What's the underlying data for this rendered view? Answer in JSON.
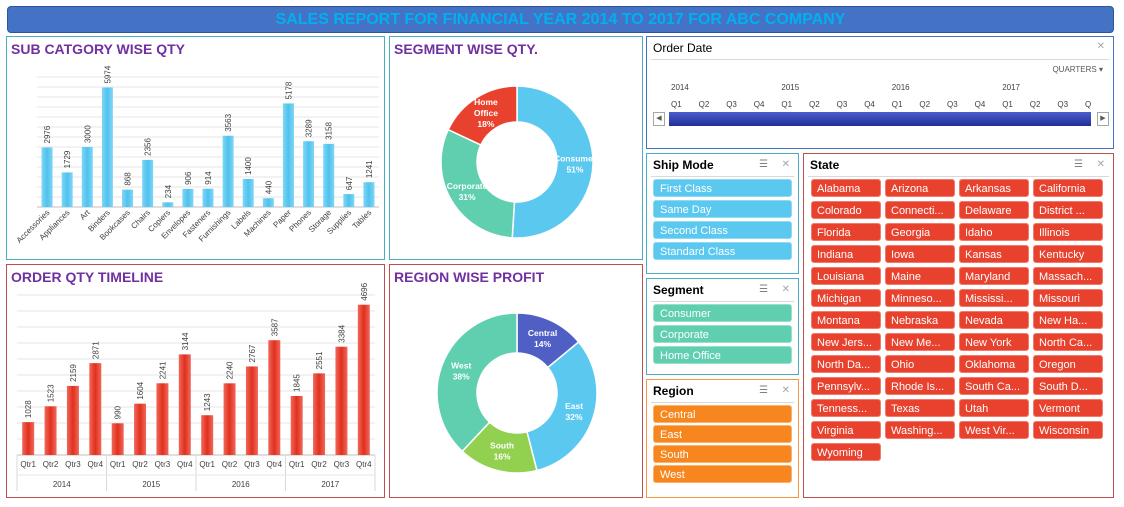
{
  "title": "SALES REPORT FOR FINANCIAL YEAR 2014 TO  2017 FOR ABC COMPANY",
  "subcategory": {
    "title": "SUB CATGORY WISE QTY",
    "chart_data": {
      "type": "bar",
      "categories": [
        "Accessories",
        "Appliances",
        "Art",
        "Binders",
        "Bookcases",
        "Chairs",
        "Copiers",
        "Envelopes",
        "Fasteners",
        "Furnishings",
        "Labels",
        "Machines",
        "Paper",
        "Phones",
        "Storage",
        "Supplies",
        "Tables"
      ],
      "values": [
        2976,
        1729,
        3000,
        5974,
        868,
        2356,
        234,
        906,
        914,
        3563,
        1400,
        440,
        5178,
        3289,
        3158,
        647,
        1241
      ],
      "color": "#5bc8f0"
    }
  },
  "segment": {
    "title": "SEGMENT WISE QTY.",
    "chart_data": {
      "type": "pie",
      "categories": [
        "Consumer",
        "Corporate",
        "Home Office"
      ],
      "values": [
        51,
        31,
        18
      ],
      "percent_labels": [
        "51%",
        "31%",
        "18%"
      ],
      "colors": [
        "#5bc8f0",
        "#5fcfb0",
        "#e8422e"
      ]
    }
  },
  "timeline": {
    "title": "ORDER QTY TIMELINE",
    "chart_data": {
      "type": "bar",
      "years": [
        "2014",
        "2015",
        "2016",
        "2017"
      ],
      "quarters": [
        "Qtr1",
        "Qtr2",
        "Qtr3",
        "Qtr4"
      ],
      "values": [
        1028,
        1523,
        2159,
        2871,
        990,
        1604,
        2241,
        3144,
        1243,
        2240,
        2767,
        3587,
        1845,
        2551,
        3384,
        4696
      ],
      "color": "#e8422e"
    }
  },
  "region": {
    "title": "REGION WISE PROFIT",
    "chart_data": {
      "type": "pie",
      "categories": [
        "Central",
        "East",
        "South",
        "West"
      ],
      "values": [
        14,
        32,
        16,
        38
      ],
      "percent_labels": [
        "14%",
        "32%",
        "16%",
        "38%"
      ],
      "colors": [
        "#4f5fc4",
        "#5bc8f0",
        "#92d050",
        "#5fcfb0"
      ]
    }
  },
  "order_date": {
    "title": "Order Date",
    "level": "QUARTERS",
    "years": [
      "2014",
      "2015",
      "2016",
      "2017"
    ],
    "quarter_labels": [
      "Q1",
      "Q2",
      "Q3",
      "Q4",
      "Q1",
      "Q2",
      "Q3",
      "Q4",
      "Q1",
      "Q2",
      "Q3",
      "Q4",
      "Q1",
      "Q2",
      "Q3",
      "Q"
    ]
  },
  "ship_mode": {
    "title": "Ship Mode",
    "items": [
      "First Class",
      "Same Day",
      "Second Class",
      "Standard Class"
    ]
  },
  "segment_slicer": {
    "title": "Segment",
    "items": [
      "Consumer",
      "Corporate",
      "Home Office"
    ]
  },
  "region_slicer": {
    "title": "Region",
    "items": [
      "Central",
      "East",
      "South",
      "West"
    ]
  },
  "state": {
    "title": "State",
    "items": [
      "Alabama",
      "Arizona",
      "Arkansas",
      "California",
      "Colorado",
      "Connecti...",
      "Delaware",
      "District ...",
      "Florida",
      "Georgia",
      "Idaho",
      "Illinois",
      "Indiana",
      "Iowa",
      "Kansas",
      "Kentucky",
      "Louisiana",
      "Maine",
      "Maryland",
      "Massach...",
      "Michigan",
      "Minneso...",
      "Mississi...",
      "Missouri",
      "Montana",
      "Nebraska",
      "Nevada",
      "New Ha...",
      "New Jers...",
      "New Me...",
      "New York",
      "North Ca...",
      "North Da...",
      "Ohio",
      "Oklahoma",
      "Oregon",
      "Pennsylv...",
      "Rhode Is...",
      "South Ca...",
      "South D...",
      "Tenness...",
      "Texas",
      "Utah",
      "Vermont",
      "Virginia",
      "Washing...",
      "West Vir...",
      "Wisconsin",
      "Wyoming"
    ]
  },
  "icons": {
    "multi_select": "multi-select-icon",
    "clear_filter": "clear-filter-icon"
  }
}
